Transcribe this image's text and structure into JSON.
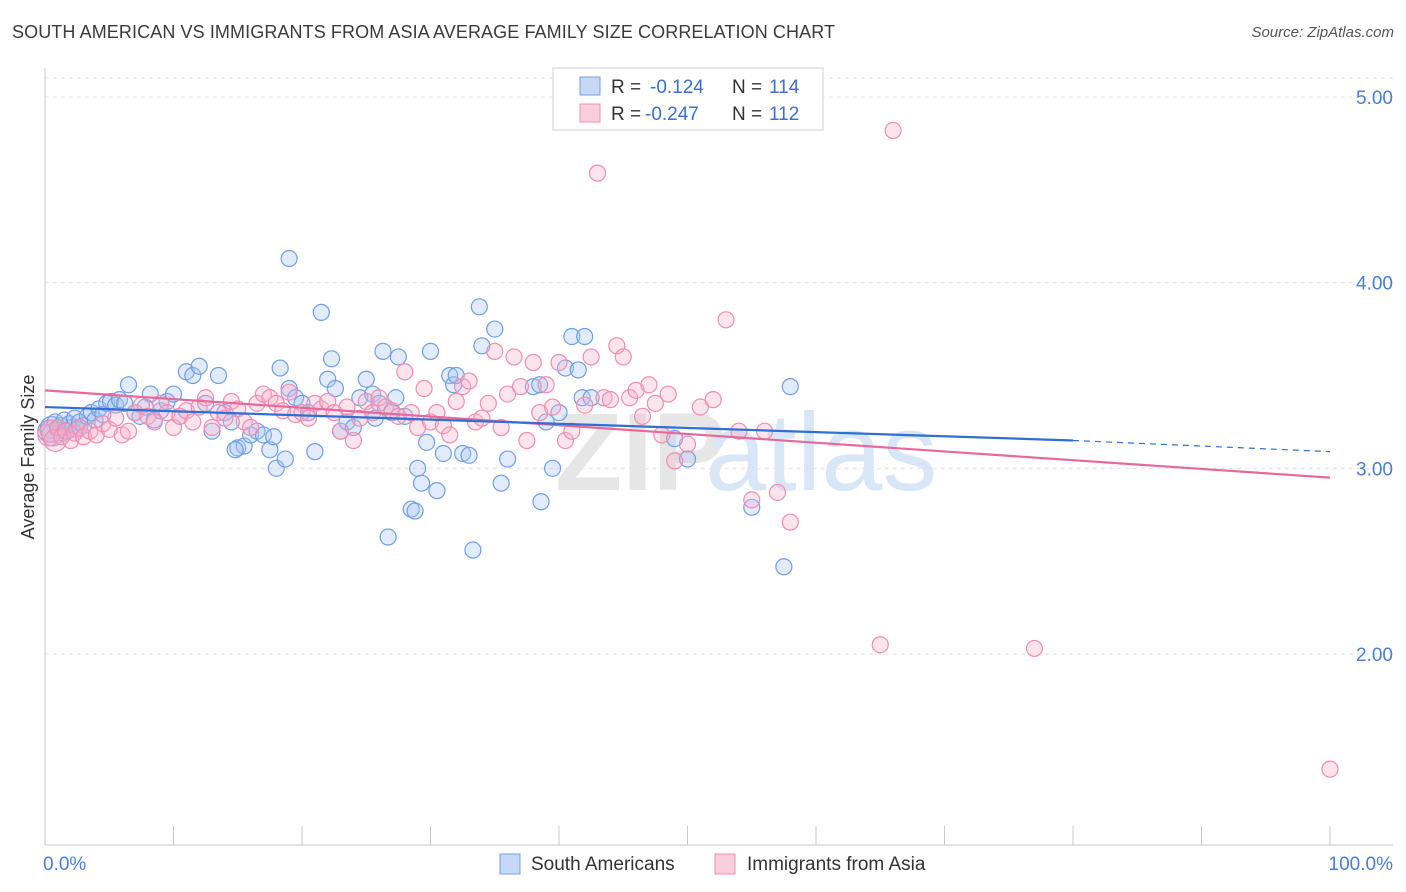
{
  "title": "SOUTH AMERICAN VS IMMIGRANTS FROM ASIA AVERAGE FAMILY SIZE CORRELATION CHART",
  "source": "Source: ZipAtlas.com",
  "watermark": {
    "zip": "ZIP",
    "atlas": "atlas"
  },
  "legend": {
    "rows": [
      {
        "r_label": "R =",
        "r_value": "-0.124",
        "n_label": "N =",
        "n_value": "114"
      },
      {
        "r_label": "R =",
        "r_value": "-0.247",
        "n_label": "N =",
        "n_value": "112"
      }
    ]
  },
  "chart_data": {
    "type": "scatter",
    "title": "SOUTH AMERICAN VS IMMIGRANTS FROM ASIA AVERAGE FAMILY SIZE CORRELATION CHART",
    "xlabel": "",
    "ylabel": "Average Family Size",
    "xlim": [
      0,
      100
    ],
    "ylim": [
      1.0,
      5.15
    ],
    "x_tick_labels": [
      "0.0%",
      "100.0%"
    ],
    "y_ticks": [
      2.0,
      3.0,
      4.0,
      5.0
    ],
    "y_tick_labels": [
      "2.00",
      "3.00",
      "4.00",
      "5.00"
    ],
    "grid": "horizontal dashed",
    "legend_position": "top-center",
    "colors": {
      "south": "#6f9fe6",
      "asia": "#f08db0",
      "south_line": "#2f6fd6",
      "asia_line": "#e8689a"
    },
    "series": [
      {
        "name": "South Americans",
        "r": -0.124,
        "n": 114,
        "trend": {
          "x0": 0,
          "y0": 3.33,
          "x1": 80,
          "y1": 3.15,
          "dash_to_x": 100,
          "dash_to_y": 3.09
        },
        "points": [
          [
            0.3,
            3.2
          ],
          [
            0.5,
            3.22
          ],
          [
            0.6,
            3.18
          ],
          [
            0.8,
            3.25
          ],
          [
            1.0,
            3.21
          ],
          [
            1.2,
            3.23
          ],
          [
            1.4,
            3.19
          ],
          [
            1.5,
            3.26
          ],
          [
            1.7,
            3.2
          ],
          [
            1.9,
            3.24
          ],
          [
            2.1,
            3.22
          ],
          [
            2.3,
            3.27
          ],
          [
            2.5,
            3.21
          ],
          [
            2.7,
            3.25
          ],
          [
            3.0,
            3.23
          ],
          [
            3.3,
            3.28
          ],
          [
            3.6,
            3.3
          ],
          [
            3.9,
            3.26
          ],
          [
            4.2,
            3.32
          ],
          [
            4.5,
            3.29
          ],
          [
            4.8,
            3.35
          ],
          [
            5.1,
            3.36
          ],
          [
            5.5,
            3.34
          ],
          [
            5.8,
            3.37
          ],
          [
            6.2,
            3.35
          ],
          [
            6.5,
            3.45
          ],
          [
            7.0,
            3.3
          ],
          [
            7.4,
            3.28
          ],
          [
            7.8,
            3.33
          ],
          [
            8.2,
            3.4
          ],
          [
            8.5,
            3.26
          ],
          [
            9.0,
            3.31
          ],
          [
            9.5,
            3.36
          ],
          [
            10.0,
            3.4
          ],
          [
            10.5,
            3.28
          ],
          [
            11.0,
            3.52
          ],
          [
            11.5,
            3.5
          ],
          [
            12.0,
            3.55
          ],
          [
            12.5,
            3.35
          ],
          [
            13.0,
            3.2
          ],
          [
            13.5,
            3.5
          ],
          [
            14.0,
            3.3
          ],
          [
            14.5,
            3.25
          ],
          [
            15.0,
            3.11
          ],
          [
            15.5,
            3.12
          ],
          [
            16.0,
            3.18
          ],
          [
            16.5,
            3.2
          ],
          [
            17.0,
            3.18
          ],
          [
            17.5,
            3.1
          ],
          [
            18.0,
            3.0
          ],
          [
            18.3,
            3.54
          ],
          [
            18.7,
            3.05
          ],
          [
            19.0,
            3.43
          ],
          [
            19.5,
            3.38
          ],
          [
            19.0,
            4.13
          ],
          [
            20.0,
            3.35
          ],
          [
            20.5,
            3.3
          ],
          [
            21.0,
            3.09
          ],
          [
            21.5,
            3.84
          ],
          [
            22.0,
            3.48
          ],
          [
            22.3,
            3.59
          ],
          [
            22.6,
            3.43
          ],
          [
            23.0,
            3.2
          ],
          [
            23.5,
            3.25
          ],
          [
            24.0,
            3.22
          ],
          [
            24.5,
            3.38
          ],
          [
            25.0,
            3.48
          ],
          [
            25.5,
            3.4
          ],
          [
            26.0,
            3.35
          ],
          [
            26.3,
            3.63
          ],
          [
            26.7,
            2.63
          ],
          [
            27.0,
            3.3
          ],
          [
            27.5,
            3.6
          ],
          [
            28.0,
            3.28
          ],
          [
            28.5,
            2.78
          ],
          [
            28.8,
            2.77
          ],
          [
            29.0,
            3.0
          ],
          [
            29.3,
            2.92
          ],
          [
            29.7,
            3.14
          ],
          [
            30.0,
            3.63
          ],
          [
            30.5,
            2.88
          ],
          [
            31.0,
            3.08
          ],
          [
            31.5,
            3.5
          ],
          [
            31.8,
            3.45
          ],
          [
            32.0,
            3.5
          ],
          [
            32.5,
            3.08
          ],
          [
            33.0,
            3.07
          ],
          [
            33.3,
            2.56
          ],
          [
            33.8,
            3.87
          ],
          [
            34.0,
            3.66
          ],
          [
            35.0,
            3.75
          ],
          [
            35.5,
            2.92
          ],
          [
            36.0,
            3.05
          ],
          [
            38.0,
            3.44
          ],
          [
            39.0,
            3.25
          ],
          [
            40.0,
            3.3
          ],
          [
            41.0,
            3.71
          ],
          [
            42.0,
            3.71
          ],
          [
            38.5,
            3.45
          ],
          [
            38.6,
            2.82
          ],
          [
            39.5,
            3.0
          ],
          [
            40.5,
            3.54
          ],
          [
            41.5,
            3.53
          ],
          [
            41.8,
            3.38
          ],
          [
            42.5,
            3.38
          ],
          [
            49.0,
            3.16
          ],
          [
            50.0,
            3.05
          ],
          [
            55.0,
            2.79
          ],
          [
            57.5,
            2.47
          ],
          [
            58.0,
            3.44
          ],
          [
            27.3,
            3.38
          ],
          [
            25.7,
            3.27
          ],
          [
            17.8,
            3.17
          ],
          [
            14.8,
            3.1
          ]
        ]
      },
      {
        "name": "Immigrants from Asia",
        "r": -0.247,
        "n": 112,
        "trend": {
          "x0": 0,
          "y0": 3.42,
          "x1": 100,
          "y1": 2.95
        },
        "points": [
          [
            0.3,
            3.18
          ],
          [
            0.5,
            3.2
          ],
          [
            0.8,
            3.15
          ],
          [
            1.0,
            3.22
          ],
          [
            1.3,
            3.17
          ],
          [
            1.6,
            3.2
          ],
          [
            2.0,
            3.15
          ],
          [
            2.3,
            3.19
          ],
          [
            2.7,
            3.22
          ],
          [
            3.0,
            3.17
          ],
          [
            3.5,
            3.2
          ],
          [
            4.0,
            3.18
          ],
          [
            4.5,
            3.24
          ],
          [
            5.0,
            3.21
          ],
          [
            5.5,
            3.27
          ],
          [
            6.0,
            3.18
          ],
          [
            6.5,
            3.2
          ],
          [
            7.0,
            3.3
          ],
          [
            7.5,
            3.34
          ],
          [
            8.0,
            3.28
          ],
          [
            8.5,
            3.25
          ],
          [
            9.0,
            3.35
          ],
          [
            9.5,
            3.3
          ],
          [
            10.0,
            3.22
          ],
          [
            10.5,
            3.28
          ],
          [
            11.0,
            3.31
          ],
          [
            11.5,
            3.25
          ],
          [
            12.0,
            3.33
          ],
          [
            12.5,
            3.38
          ],
          [
            13.0,
            3.22
          ],
          [
            13.5,
            3.3
          ],
          [
            14.0,
            3.27
          ],
          [
            14.5,
            3.36
          ],
          [
            15.0,
            3.32
          ],
          [
            15.5,
            3.25
          ],
          [
            16.0,
            3.22
          ],
          [
            16.5,
            3.35
          ],
          [
            17.0,
            3.4
          ],
          [
            17.5,
            3.38
          ],
          [
            18.0,
            3.35
          ],
          [
            18.5,
            3.31
          ],
          [
            19.0,
            3.41
          ],
          [
            19.5,
            3.29
          ],
          [
            20.0,
            3.3
          ],
          [
            20.5,
            3.27
          ],
          [
            21.0,
            3.35
          ],
          [
            21.5,
            3.32
          ],
          [
            22.0,
            3.36
          ],
          [
            22.5,
            3.3
          ],
          [
            23.0,
            3.2
          ],
          [
            23.5,
            3.33
          ],
          [
            24.0,
            3.15
          ],
          [
            24.5,
            3.27
          ],
          [
            25.0,
            3.36
          ],
          [
            25.5,
            3.3
          ],
          [
            26.0,
            3.38
          ],
          [
            26.5,
            3.33
          ],
          [
            27.0,
            3.31
          ],
          [
            27.5,
            3.28
          ],
          [
            28.0,
            3.52
          ],
          [
            28.5,
            3.3
          ],
          [
            29.0,
            3.22
          ],
          [
            29.5,
            3.43
          ],
          [
            30.0,
            3.25
          ],
          [
            30.5,
            3.3
          ],
          [
            31.0,
            3.23
          ],
          [
            31.5,
            3.18
          ],
          [
            32.0,
            3.36
          ],
          [
            32.5,
            3.44
          ],
          [
            33.0,
            3.47
          ],
          [
            33.5,
            3.25
          ],
          [
            34.0,
            3.27
          ],
          [
            34.5,
            3.35
          ],
          [
            35.0,
            3.63
          ],
          [
            35.5,
            3.22
          ],
          [
            36.0,
            3.4
          ],
          [
            36.5,
            3.6
          ],
          [
            37.0,
            3.44
          ],
          [
            37.5,
            3.15
          ],
          [
            38.0,
            3.57
          ],
          [
            38.5,
            3.3
          ],
          [
            39.0,
            3.45
          ],
          [
            39.5,
            3.33
          ],
          [
            40.0,
            3.57
          ],
          [
            40.5,
            3.15
          ],
          [
            41.0,
            3.2
          ],
          [
            42.0,
            3.34
          ],
          [
            42.5,
            3.6
          ],
          [
            43.0,
            4.59
          ],
          [
            43.5,
            3.38
          ],
          [
            44.0,
            3.37
          ],
          [
            44.5,
            3.66
          ],
          [
            45.0,
            3.6
          ],
          [
            45.5,
            3.38
          ],
          [
            46.0,
            3.42
          ],
          [
            46.5,
            3.28
          ],
          [
            47.0,
            3.45
          ],
          [
            47.5,
            3.35
          ],
          [
            48.0,
            3.18
          ],
          [
            48.5,
            3.4
          ],
          [
            49.0,
            3.04
          ],
          [
            50.0,
            3.13
          ],
          [
            51.0,
            3.33
          ],
          [
            52.0,
            3.37
          ],
          [
            53.0,
            3.8
          ],
          [
            54.0,
            3.2
          ],
          [
            55.0,
            2.83
          ],
          [
            56.0,
            3.2
          ],
          [
            57.0,
            2.87
          ],
          [
            58.0,
            2.71
          ],
          [
            65.0,
            2.05
          ],
          [
            66.0,
            4.82
          ],
          [
            77.0,
            2.03
          ],
          [
            100.0,
            1.38
          ]
        ]
      }
    ]
  },
  "bottom_legend": [
    {
      "label": "South Americans"
    },
    {
      "label": "Immigrants from Asia"
    }
  ]
}
